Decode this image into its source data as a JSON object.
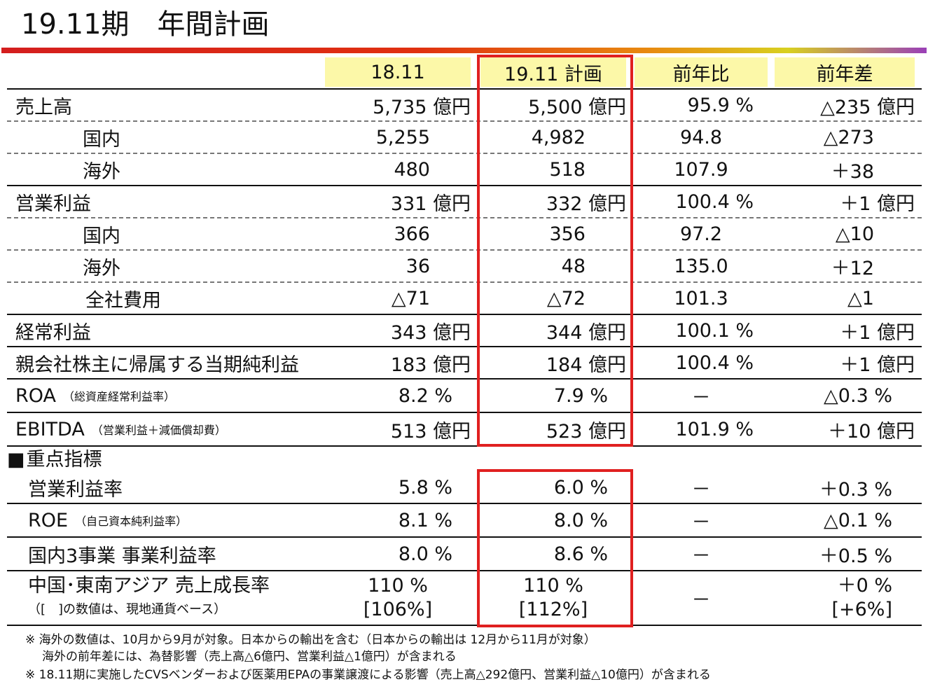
{
  "title": "19.11期　年間計画",
  "headers": {
    "c1": "18.11",
    "c2": "19.11 計画",
    "c3": "前年比",
    "c4": "前年差"
  },
  "rows": [
    {
      "label": "売上高",
      "c1": "5,735 億円",
      "c2": "5,500 億円",
      "c3": "95.9 %",
      "c4": "△235 億円"
    },
    {
      "label": "国内",
      "c1": "5,255",
      "c2": "4,982",
      "c3": "94.8",
      "c4": "△273"
    },
    {
      "label": "海外",
      "c1": "480",
      "c2": "518",
      "c3": "107.9",
      "c4": "＋38"
    },
    {
      "label": "営業利益",
      "c1": "331 億円",
      "c2": "332 億円",
      "c3": "100.4 %",
      "c4": "＋1 億円"
    },
    {
      "label": "国内",
      "c1": "366",
      "c2": "356",
      "c3": "97.2",
      "c4": "△10"
    },
    {
      "label": "海外",
      "c1": "36",
      "c2": "48",
      "c3": "135.0",
      "c4": "＋12"
    },
    {
      "label": "全社費用",
      "c1": "△71",
      "c2": "△72",
      "c3": "101.3",
      "c4": "△1"
    },
    {
      "label": "経常利益",
      "c1": "343 億円",
      "c2": "344 億円",
      "c3": "100.1 %",
      "c4": "＋1 億円"
    },
    {
      "label": "親会社株主に帰属する当期純利益",
      "c1": "183 億円",
      "c2": "184 億円",
      "c3": "100.4 %",
      "c4": "＋1 億円"
    },
    {
      "label": "ROA",
      "sub": "（総資産経常利益率）",
      "c1": "8.2 %",
      "c2": "7.9 %",
      "c3": "－",
      "c4": "△0.3 %"
    },
    {
      "label": "EBITDA",
      "sub": "（営業利益＋減価償却費）",
      "c1": "513 億円",
      "c2": "523 億円",
      "c3": "101.9 %",
      "c4": "＋10 億円"
    }
  ],
  "kpi_section": "重点指標",
  "kpi_rows": [
    {
      "label": "営業利益率",
      "c1": "5.8 %",
      "c2": "6.0 %",
      "c3": "－",
      "c4": "＋0.3 %"
    },
    {
      "label": "ROE",
      "sub": "（自己資本純利益率）",
      "c1": "8.1 %",
      "c2": "8.0 %",
      "c3": "－",
      "c4": "△0.1 %"
    },
    {
      "label": "国内3事業 事業利益率",
      "c1": "8.0 %",
      "c2": "8.6 %",
      "c3": "－",
      "c4": "＋0.5 %"
    },
    {
      "label": "中国･東南アジア 売上成長率",
      "sub": "（[　]の数値は、現地通貨ベース）",
      "c1": "110 %",
      "c1b": "[106%]",
      "c2": "110 %",
      "c2b": "[112%]",
      "c3": "－",
      "c4": "＋0 %",
      "c4b": "[+6%]"
    }
  ],
  "notes": [
    "※ 海外の数値は、10月から9月が対象。日本からの輸出を含む（日本からの輸出は 12月から11月が対象）",
    "海外の前年差には、為替影響（売上高△6億円、営業利益△1億円）が含まれる",
    "※ 18.11期に実施したCVSベンダーおよび医薬用EPAの事業譲渡による影響（売上高△292億円、営業利益△10億円）が含まれる"
  ]
}
